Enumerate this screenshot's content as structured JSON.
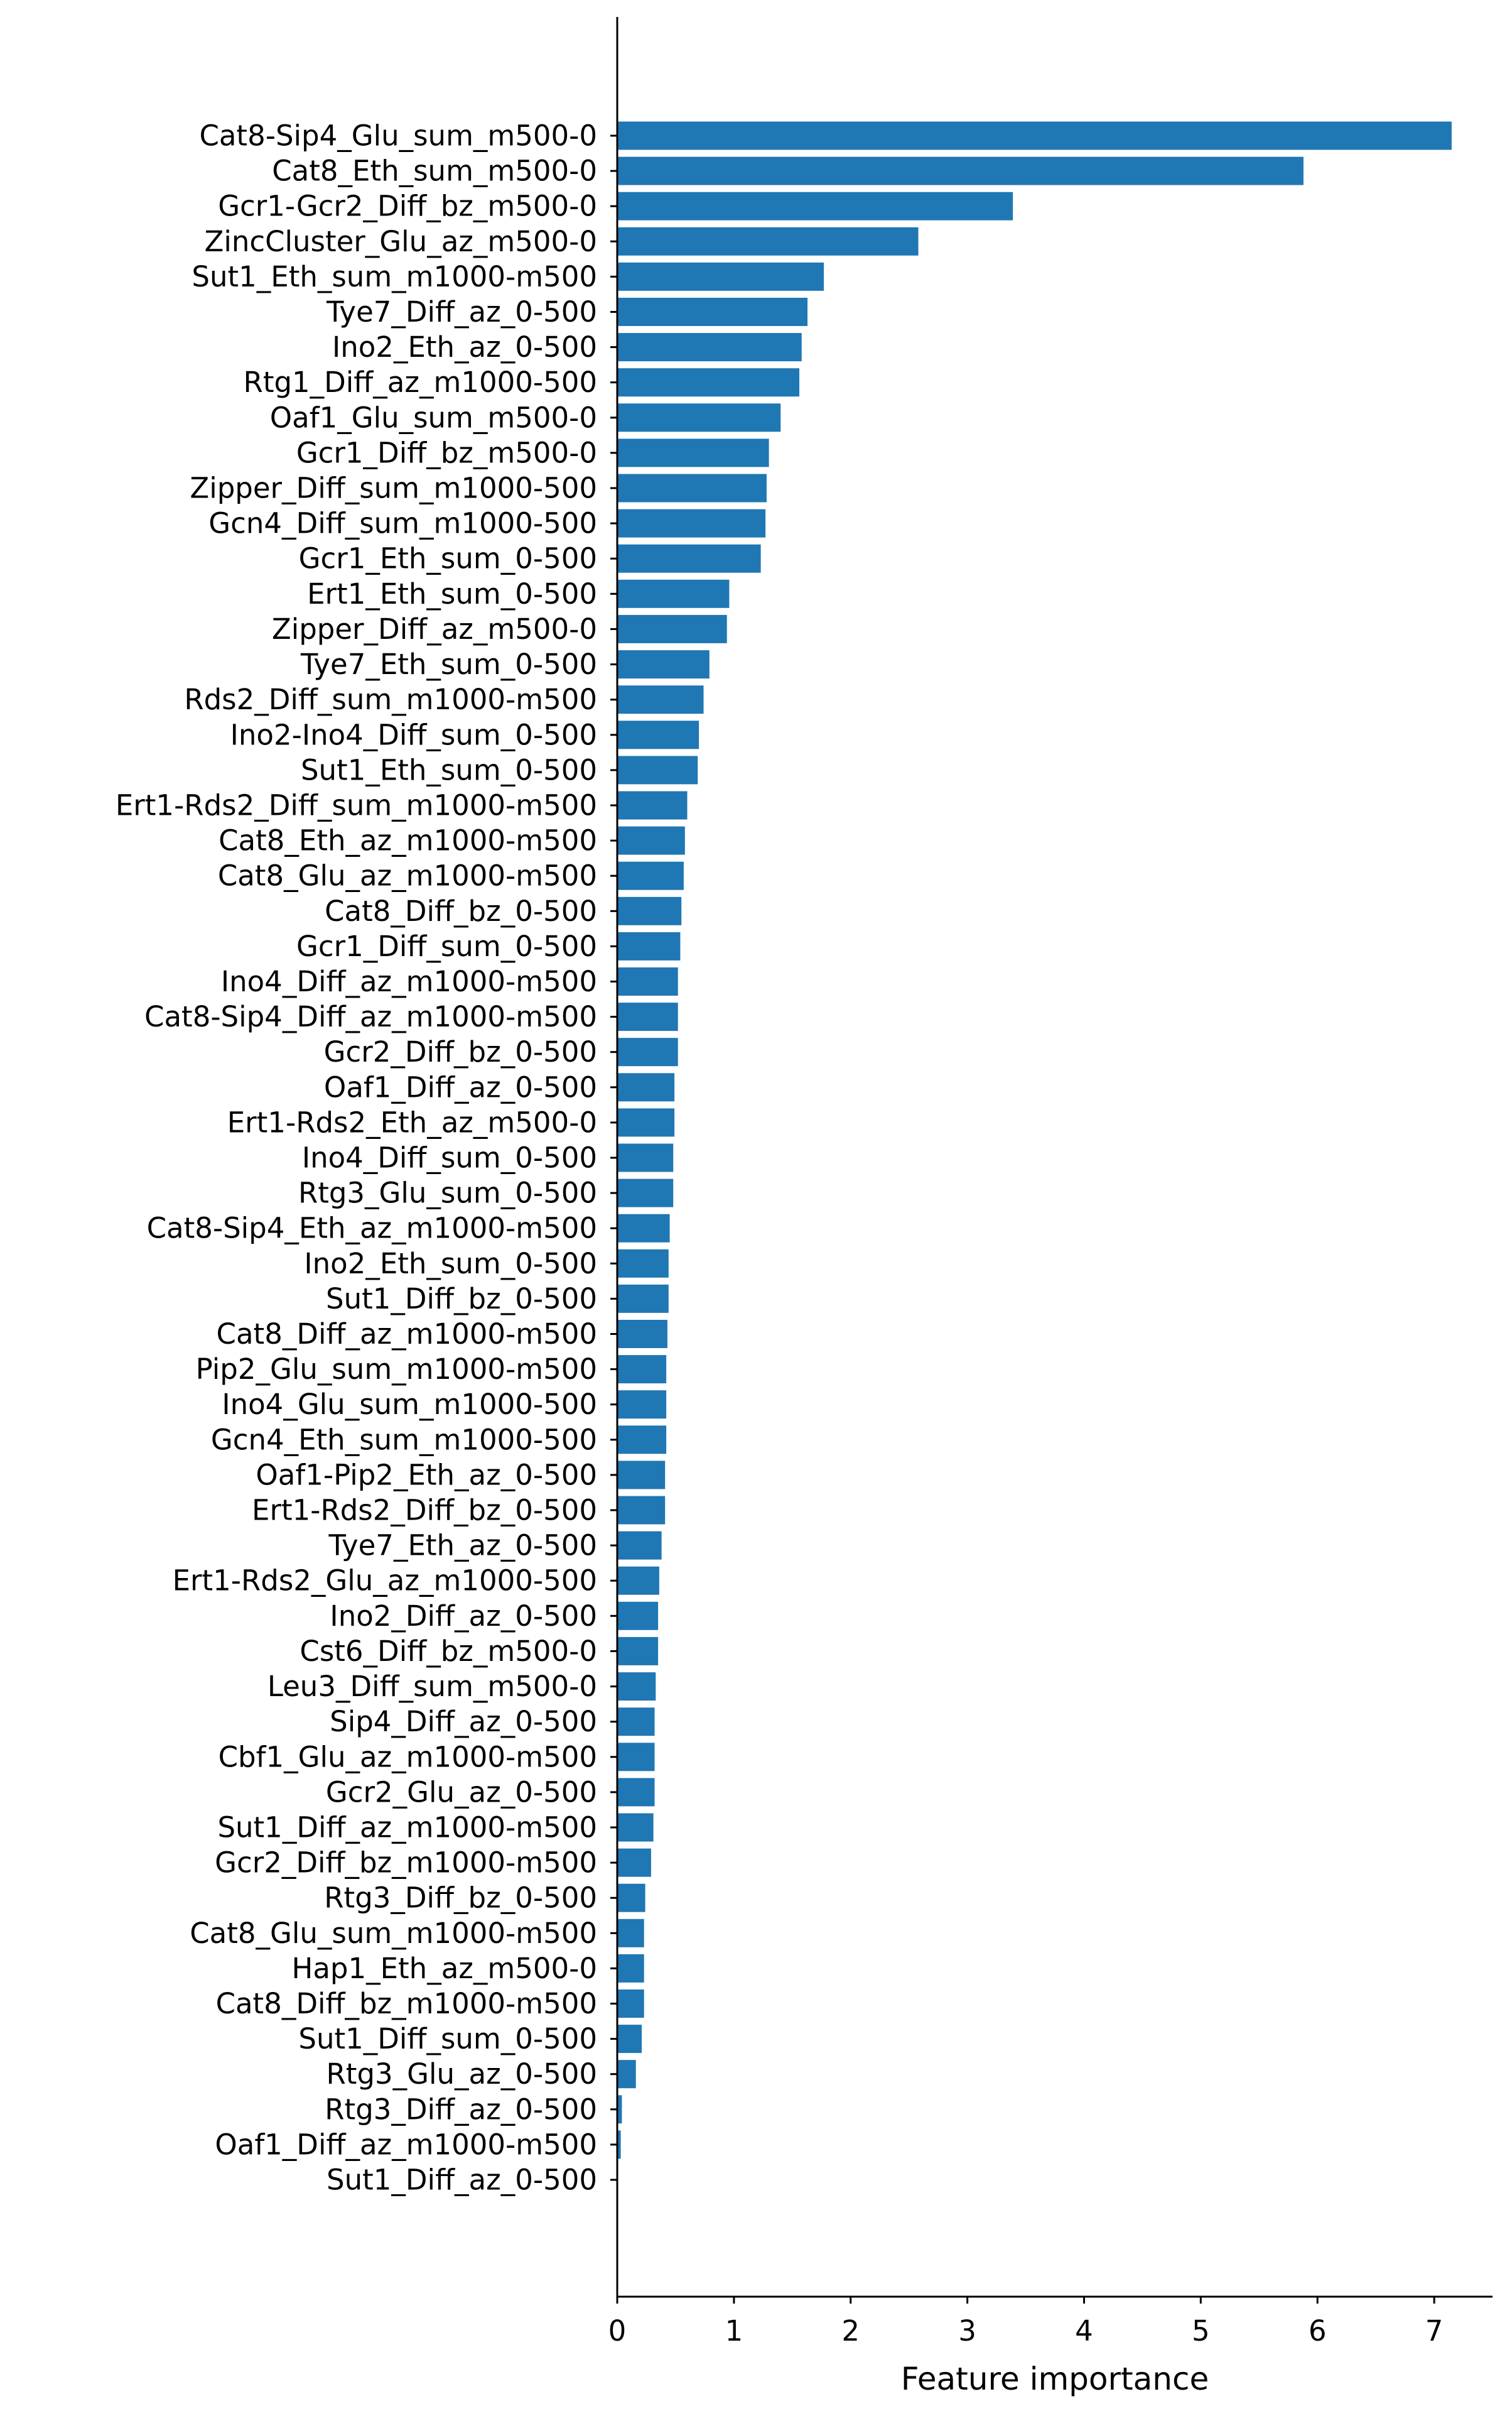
{
  "chart_data": {
    "type": "bar",
    "orientation": "horizontal",
    "title": "",
    "xlabel": "Feature importance",
    "ylabel": "",
    "xlim": [
      0,
      7.5
    ],
    "xticks": [
      "0",
      "1",
      "2",
      "3",
      "4",
      "5",
      "6",
      "7"
    ],
    "grid": false,
    "legend": "none",
    "bar_color": "#1f77b4",
    "categories": [
      "Cat8-Sip4_Glu_sum_m500-0",
      "Cat8_Eth_sum_m500-0",
      "Gcr1-Gcr2_Diff_bz_m500-0",
      "ZincCluster_Glu_az_m500-0",
      "Sut1_Eth_sum_m1000-m500",
      "Tye7_Diff_az_0-500",
      "Ino2_Eth_az_0-500",
      "Rtg1_Diff_az_m1000-500",
      "Oaf1_Glu_sum_m500-0",
      "Gcr1_Diff_bz_m500-0",
      "Zipper_Diff_sum_m1000-500",
      "Gcn4_Diff_sum_m1000-500",
      "Gcr1_Eth_sum_0-500",
      "Ert1_Eth_sum_0-500",
      "Zipper_Diff_az_m500-0",
      "Tye7_Eth_sum_0-500",
      "Rds2_Diff_sum_m1000-m500",
      "Ino2-Ino4_Diff_sum_0-500",
      "Sut1_Eth_sum_0-500",
      "Ert1-Rds2_Diff_sum_m1000-m500",
      "Cat8_Eth_az_m1000-m500",
      "Cat8_Glu_az_m1000-m500",
      "Cat8_Diff_bz_0-500",
      "Gcr1_Diff_sum_0-500",
      "Ino4_Diff_az_m1000-m500",
      "Cat8-Sip4_Diff_az_m1000-m500",
      "Gcr2_Diff_bz_0-500",
      "Oaf1_Diff_az_0-500",
      "Ert1-Rds2_Eth_az_m500-0",
      "Ino4_Diff_sum_0-500",
      "Rtg3_Glu_sum_0-500",
      "Cat8-Sip4_Eth_az_m1000-m500",
      "Ino2_Eth_sum_0-500",
      "Sut1_Diff_bz_0-500",
      "Cat8_Diff_az_m1000-m500",
      "Pip2_Glu_sum_m1000-m500",
      "Ino4_Glu_sum_m1000-500",
      "Gcn4_Eth_sum_m1000-500",
      "Oaf1-Pip2_Eth_az_0-500",
      "Ert1-Rds2_Diff_bz_0-500",
      "Tye7_Eth_az_0-500",
      "Ert1-Rds2_Glu_az_m1000-500",
      "Ino2_Diff_az_0-500",
      "Cst6_Diff_bz_m500-0",
      "Leu3_Diff_sum_m500-0",
      "Sip4_Diff_az_0-500",
      "Cbf1_Glu_az_m1000-m500",
      "Gcr2_Glu_az_0-500",
      "Sut1_Diff_az_m1000-m500",
      "Gcr2_Diff_bz_m1000-m500",
      "Rtg3_Diff_bz_0-500",
      "Cat8_Glu_sum_m1000-m500",
      "Hap1_Eth_az_m500-0",
      "Cat8_Diff_bz_m1000-m500",
      "Sut1_Diff_sum_0-500",
      "Rtg3_Glu_az_0-500",
      "Rtg3_Diff_az_0-500",
      "Oaf1_Diff_az_m1000-m500",
      "Sut1_Diff_az_0-500"
    ],
    "values": [
      7.15,
      5.88,
      3.39,
      2.58,
      1.77,
      1.63,
      1.58,
      1.56,
      1.4,
      1.3,
      1.28,
      1.27,
      1.23,
      0.96,
      0.94,
      0.79,
      0.74,
      0.7,
      0.69,
      0.6,
      0.58,
      0.57,
      0.55,
      0.54,
      0.52,
      0.52,
      0.52,
      0.49,
      0.49,
      0.48,
      0.48,
      0.45,
      0.44,
      0.44,
      0.43,
      0.42,
      0.42,
      0.42,
      0.41,
      0.41,
      0.38,
      0.36,
      0.35,
      0.35,
      0.33,
      0.32,
      0.32,
      0.32,
      0.31,
      0.29,
      0.24,
      0.23,
      0.23,
      0.23,
      0.21,
      0.16,
      0.04,
      0.03,
      0.0
    ]
  }
}
